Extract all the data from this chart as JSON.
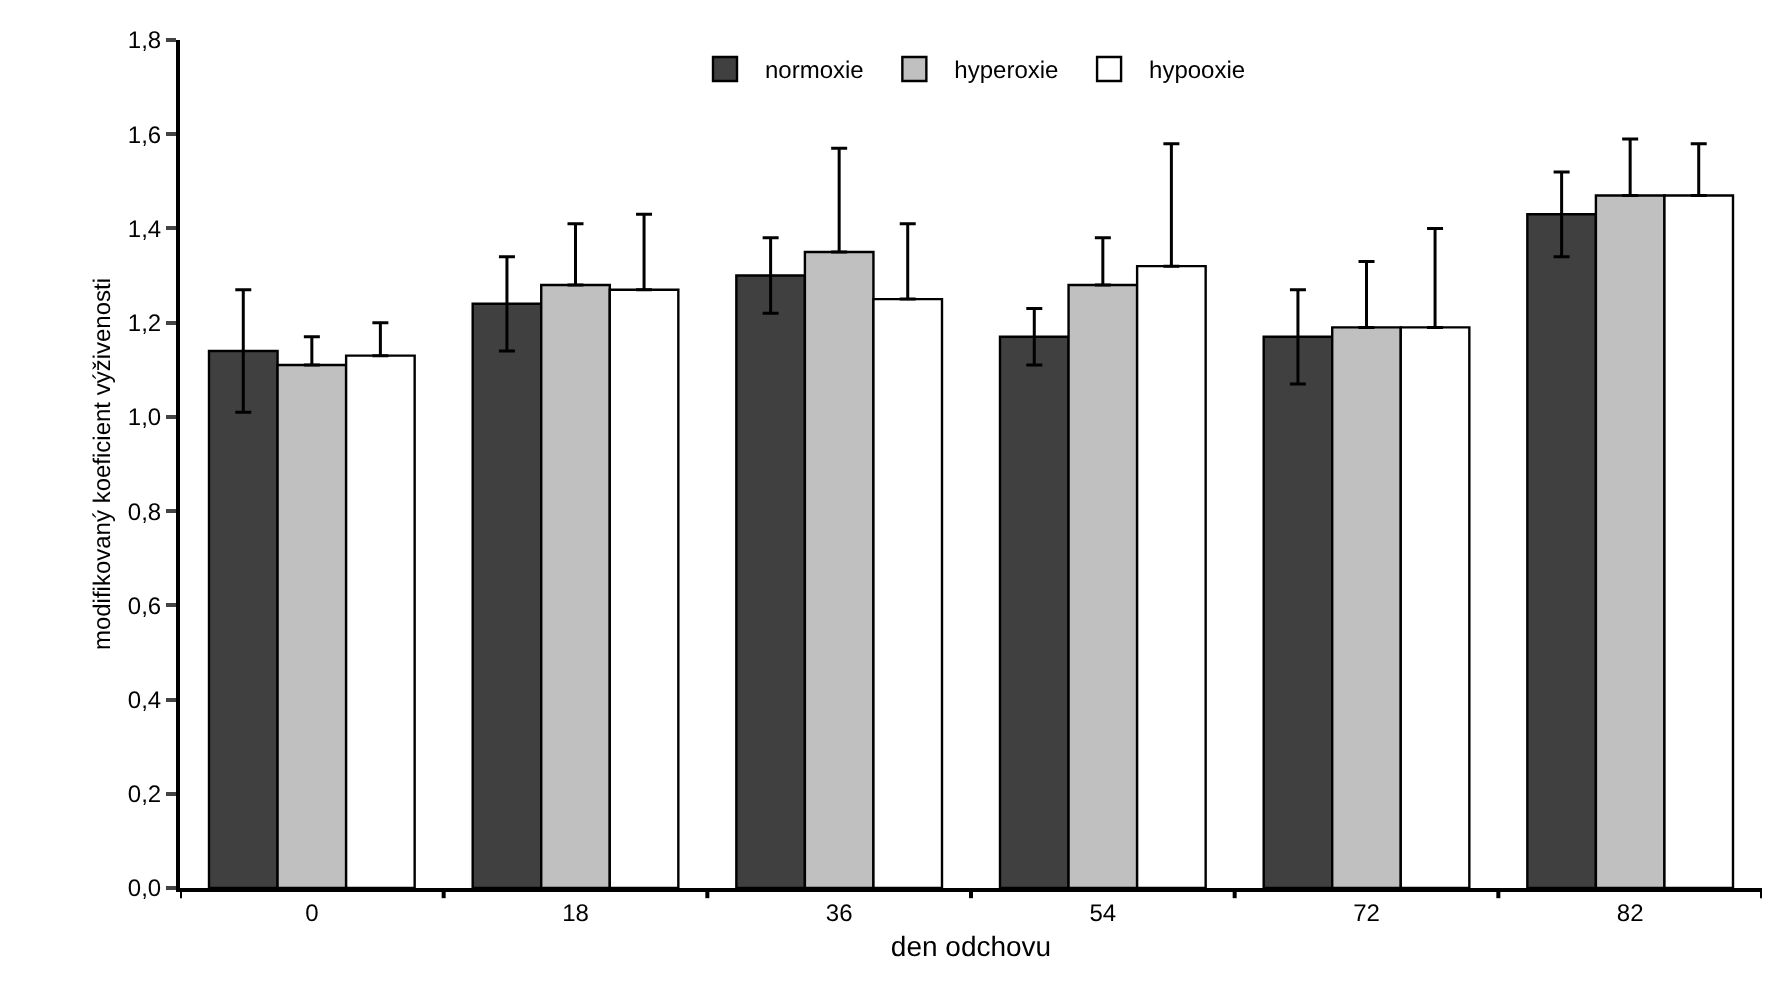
{
  "chart_data": {
    "type": "bar",
    "xlabel": "den odchovu",
    "ylabel": "modifikovaný koeficient výživenosti",
    "categories": [
      "0",
      "18",
      "36",
      "54",
      "72",
      "82"
    ],
    "series": [
      {
        "name": "normoxie",
        "color": "#404040",
        "values": [
          1.14,
          1.24,
          1.3,
          1.17,
          1.17,
          1.43
        ],
        "errors": [
          0.13,
          0.1,
          0.08,
          0.06,
          0.1,
          0.09
        ]
      },
      {
        "name": "hyperoxie",
        "color": "#c0c0c0",
        "values": [
          1.11,
          1.28,
          1.35,
          1.28,
          1.19,
          1.47
        ],
        "errors": [
          [
            1.11,
            1.17
          ],
          [
            1.28,
            1.41
          ],
          [
            1.35,
            1.57
          ],
          [
            1.28,
            1.38
          ],
          [
            1.19,
            1.33
          ],
          [
            1.47,
            1.59
          ]
        ]
      },
      {
        "name": "hypooxie",
        "color": "#ffffff",
        "values": [
          1.13,
          1.27,
          1.25,
          1.32,
          1.19,
          1.47
        ],
        "errors": [
          [
            1.13,
            1.2
          ],
          [
            1.27,
            1.43
          ],
          [
            1.25,
            1.41
          ],
          [
            1.32,
            1.58
          ],
          [
            1.19,
            1.4
          ],
          [
            1.47,
            1.58
          ]
        ]
      }
    ],
    "ylim": [
      0,
      1.8
    ],
    "yticks": [
      {
        "value": 0,
        "label": "0,0"
      },
      {
        "value": 0.2,
        "label": "0,2"
      },
      {
        "value": 0.4,
        "label": "0,4"
      },
      {
        "value": 0.6,
        "label": "0,6"
      },
      {
        "value": 0.8,
        "label": "0,8"
      },
      {
        "value": 1,
        "label": "1,0"
      },
      {
        "value": 1.2,
        "label": "1,2"
      },
      {
        "value": 1.4,
        "label": "1,4"
      },
      {
        "value": 1.6,
        "label": "1,6"
      },
      {
        "value": 1.8,
        "label": "1,8"
      }
    ],
    "grid": false,
    "legend": "top"
  }
}
